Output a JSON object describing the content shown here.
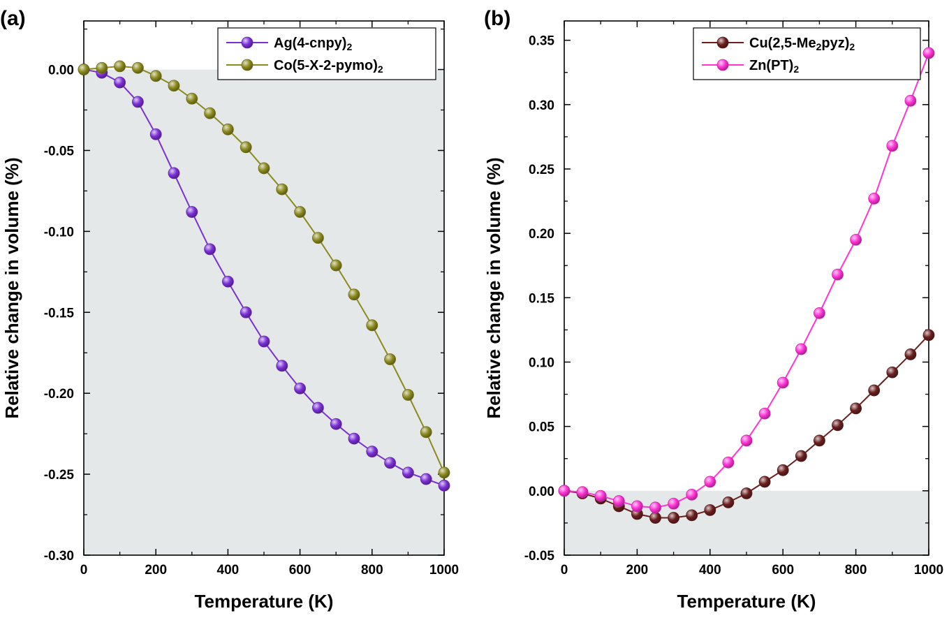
{
  "chart_data": [
    {
      "type": "line",
      "panel_label": "(a)",
      "xlabel": "Temperature (K)",
      "ylabel": "Relative change in volume (%)",
      "xlim": [
        0,
        1000
      ],
      "ylim": [
        -0.3,
        0.03
      ],
      "x_ticks": [
        "0",
        "200",
        "400",
        "600",
        "800",
        "1000"
      ],
      "y_ticks": [
        "0.00",
        "-0.05",
        "-0.10",
        "-0.15",
        "-0.20",
        "-0.25",
        "-0.30"
      ],
      "shaded_region": "y < 0",
      "shade_color": "#e4e8e8",
      "legend_position": "top-right",
      "x": [
        0,
        50,
        100,
        150,
        200,
        250,
        300,
        350,
        400,
        450,
        500,
        550,
        600,
        650,
        700,
        750,
        800,
        850,
        900,
        950,
        1000
      ],
      "series": [
        {
          "name": "Ag(4-cnpy)2",
          "legend_main": "Ag(4-cnpy)",
          "legend_sub": "2",
          "color": "#7b2fd6",
          "values": [
            0.0,
            -0.002,
            -0.008,
            -0.02,
            -0.04,
            -0.064,
            -0.088,
            -0.111,
            -0.131,
            -0.15,
            -0.168,
            -0.183,
            -0.197,
            -0.209,
            -0.219,
            -0.228,
            -0.236,
            -0.243,
            -0.249,
            -0.253,
            -0.257
          ]
        },
        {
          "name": "Co(5-X-2-pymo)2",
          "legend_main": "Co(5-X-2-pymo)",
          "legend_sub": "2",
          "color": "#8c8a1e",
          "values": [
            0.0,
            0.001,
            0.002,
            0.001,
            -0.004,
            -0.01,
            -0.018,
            -0.027,
            -0.037,
            -0.048,
            -0.061,
            -0.074,
            -0.088,
            -0.104,
            -0.121,
            -0.139,
            -0.158,
            -0.179,
            -0.201,
            -0.224,
            -0.249
          ]
        }
      ]
    },
    {
      "type": "line",
      "panel_label": "(b)",
      "xlabel": "Temperature (K)",
      "ylabel": "Relative change in volume (%)",
      "xlim": [
        0,
        1000
      ],
      "ylim": [
        -0.05,
        0.365
      ],
      "x_ticks": [
        "0",
        "200",
        "400",
        "600",
        "800",
        "1000"
      ],
      "y_ticks": [
        "0.35",
        "0.30",
        "0.25",
        "0.20",
        "0.15",
        "0.10",
        "0.05",
        "0.00",
        "-0.05"
      ],
      "shaded_region": "y < 0",
      "shade_color": "#e4e8e8",
      "legend_position": "top-right",
      "x": [
        0,
        50,
        100,
        150,
        200,
        250,
        300,
        350,
        400,
        450,
        500,
        550,
        600,
        650,
        700,
        750,
        800,
        850,
        900,
        950,
        1000
      ],
      "series": [
        {
          "name": "Cu(2,5-Me2pyz)2",
          "legend_main": "Cu(2,5-Me",
          "legend_sub": "2",
          "legend_main2": "pyz)",
          "legend_sub2": "2",
          "color": "#6b1f1f",
          "values": [
            0.0,
            -0.002,
            -0.006,
            -0.012,
            -0.018,
            -0.021,
            -0.021,
            -0.019,
            -0.015,
            -0.009,
            -0.002,
            0.007,
            0.016,
            0.027,
            0.039,
            0.051,
            0.064,
            0.078,
            0.092,
            0.106,
            0.121
          ]
        },
        {
          "name": "Zn(PT)2",
          "legend_main": "Zn(PT)",
          "legend_sub": "2",
          "color": "#ff33d6",
          "values": [
            0.0,
            -0.001,
            -0.004,
            -0.008,
            -0.012,
            -0.013,
            -0.01,
            -0.003,
            0.007,
            0.022,
            0.039,
            0.06,
            0.084,
            0.11,
            0.138,
            0.168,
            0.195,
            0.227,
            0.268,
            0.303,
            0.34
          ]
        }
      ]
    }
  ]
}
